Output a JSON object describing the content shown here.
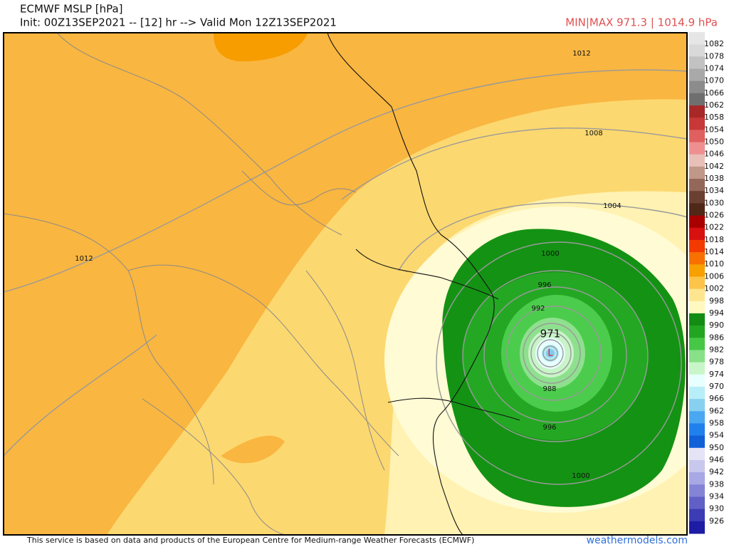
{
  "header": {
    "title": "ECMWF MSLP [hPa]",
    "init": "Init: 00Z13SEP2021 -- [12] hr --> Valid Mon 12Z13SEP2021",
    "minmax": "MIN|MAX 971.3 | 1014.9 hPa"
  },
  "map": {
    "contour_labels": [
      1012,
      1008,
      1004,
      1000,
      996,
      992,
      988,
      996,
      1000,
      1012
    ],
    "low_value": 971,
    "low_marker": "L"
  },
  "colorbar": {
    "levels": [
      {
        "label": 1082,
        "color": "#d9d9d9"
      },
      {
        "label": 1078,
        "color": "#c2c2c2"
      },
      {
        "label": 1074,
        "color": "#a9a9a9"
      },
      {
        "label": 1070,
        "color": "#8c8c8c"
      },
      {
        "label": 1066,
        "color": "#6f6f6f"
      },
      {
        "label": 1062,
        "color": "#a82828"
      },
      {
        "label": 1058,
        "color": "#c83838"
      },
      {
        "label": 1054,
        "color": "#e06060"
      },
      {
        "label": 1050,
        "color": "#ee9090"
      },
      {
        "label": 1046,
        "color": "#e8c0b8"
      },
      {
        "label": 1042,
        "color": "#c09888"
      },
      {
        "label": 1038,
        "color": "#946858"
      },
      {
        "label": 1034,
        "color": "#6a4030"
      },
      {
        "label": 1030,
        "color": "#502818"
      },
      {
        "label": 1026,
        "color": "#a80000"
      },
      {
        "label": 1022,
        "color": "#d81010"
      },
      {
        "label": 1018,
        "color": "#f43a00"
      },
      {
        "label": 1014,
        "color": "#f87000"
      },
      {
        "label": 1010,
        "color": "#f8a000"
      },
      {
        "label": 1006,
        "color": "#fcc448"
      },
      {
        "label": 1002,
        "color": "#fee690"
      },
      {
        "label": 998,
        "color": "#fff8c0"
      },
      {
        "label": 994,
        "color": "#148c14"
      },
      {
        "label": 990,
        "color": "#22a622"
      },
      {
        "label": 986,
        "color": "#46c846"
      },
      {
        "label": 982,
        "color": "#88e088"
      },
      {
        "label": 978,
        "color": "#c8f6c8"
      },
      {
        "label": 974,
        "color": "#e8ffff"
      },
      {
        "label": 970,
        "color": "#b8eef8"
      },
      {
        "label": 966,
        "color": "#88d0f0"
      },
      {
        "label": 962,
        "color": "#4aa8f0"
      },
      {
        "label": 958,
        "color": "#2080ec"
      },
      {
        "label": 954,
        "color": "#1060d8"
      },
      {
        "label": 950,
        "color": "#e4e4f6"
      },
      {
        "label": 946,
        "color": "#c8c8ee"
      },
      {
        "label": 942,
        "color": "#a8a8e4"
      },
      {
        "label": 938,
        "color": "#8484d6"
      },
      {
        "label": 934,
        "color": "#6060c6"
      },
      {
        "label": 930,
        "color": "#3c3cb4"
      },
      {
        "label": 926,
        "color": "#1c1ca4"
      }
    ]
  },
  "footer": {
    "credit": "This service is based on data and products of the European Centre for Medium-range Weather Forecasts (ECMWF)",
    "site": "weathermodels.com"
  }
}
